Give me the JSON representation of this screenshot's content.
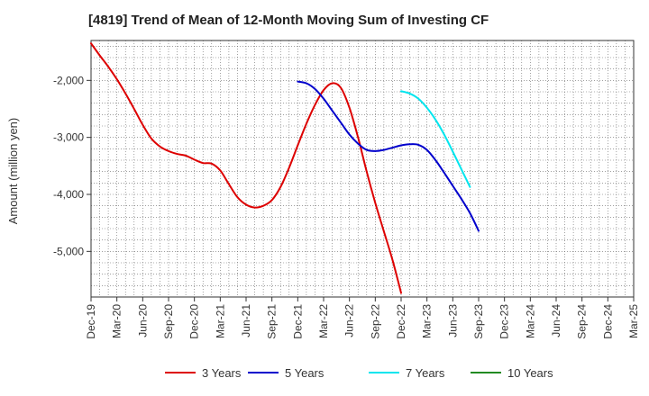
{
  "chart_data": {
    "type": "line",
    "title": "[4819]  Trend of Mean of 12-Month Moving Sum of Investing CF",
    "xlabel": "",
    "ylabel": "Amount (million yen)",
    "x_range": [
      "Dec-19",
      "Mar-25"
    ],
    "ylim": [
      -5800,
      -1300
    ],
    "y_ticks": [
      -2000,
      -3000,
      -4000,
      -5000
    ],
    "y_tick_labels": [
      "-2,000",
      "-3,000",
      "-4,000",
      "-5,000"
    ],
    "x_tick_labels": [
      "Dec-19",
      "Mar-20",
      "Jun-20",
      "Sep-20",
      "Dec-20",
      "Mar-21",
      "Jun-21",
      "Sep-21",
      "Dec-21",
      "Mar-22",
      "Jun-22",
      "Sep-22",
      "Dec-22",
      "Mar-23",
      "Jun-23",
      "Sep-23",
      "Dec-23",
      "Mar-24",
      "Jun-24",
      "Sep-24",
      "Dec-24",
      "Mar-25"
    ],
    "grid": true,
    "legend_position": "bottom",
    "series": [
      {
        "name": "3 Years",
        "color": "#dd0000",
        "start_index": 0,
        "values": [
          -1350,
          -1560,
          -1760,
          -1980,
          -2230,
          -2500,
          -2780,
          -3020,
          -3160,
          -3240,
          -3290,
          -3320,
          -3390,
          -3450,
          -3460,
          -3580,
          -3820,
          -4050,
          -4180,
          -4230,
          -4200,
          -4100,
          -3870,
          -3530,
          -3140,
          -2760,
          -2430,
          -2170,
          -2050,
          -2130,
          -2480,
          -3000,
          -3600,
          -4150,
          -4650,
          -5150,
          -5730
        ]
      },
      {
        "name": "5 Years",
        "color": "#0000cc",
        "start_index": 24,
        "values": [
          -2020,
          -2050,
          -2150,
          -2320,
          -2530,
          -2740,
          -2950,
          -3110,
          -3220,
          -3240,
          -3220,
          -3180,
          -3140,
          -3120,
          -3130,
          -3220,
          -3400,
          -3620,
          -3850,
          -4080,
          -4330,
          -4640
        ]
      },
      {
        "name": "7 Years",
        "color": "#00e5ee",
        "start_index": 36,
        "values": [
          -2190,
          -2230,
          -2320,
          -2480,
          -2690,
          -2950,
          -3250,
          -3560,
          -3870
        ]
      },
      {
        "name": "10 Years",
        "color": "#228b22",
        "start_index": 0,
        "values": []
      }
    ]
  }
}
